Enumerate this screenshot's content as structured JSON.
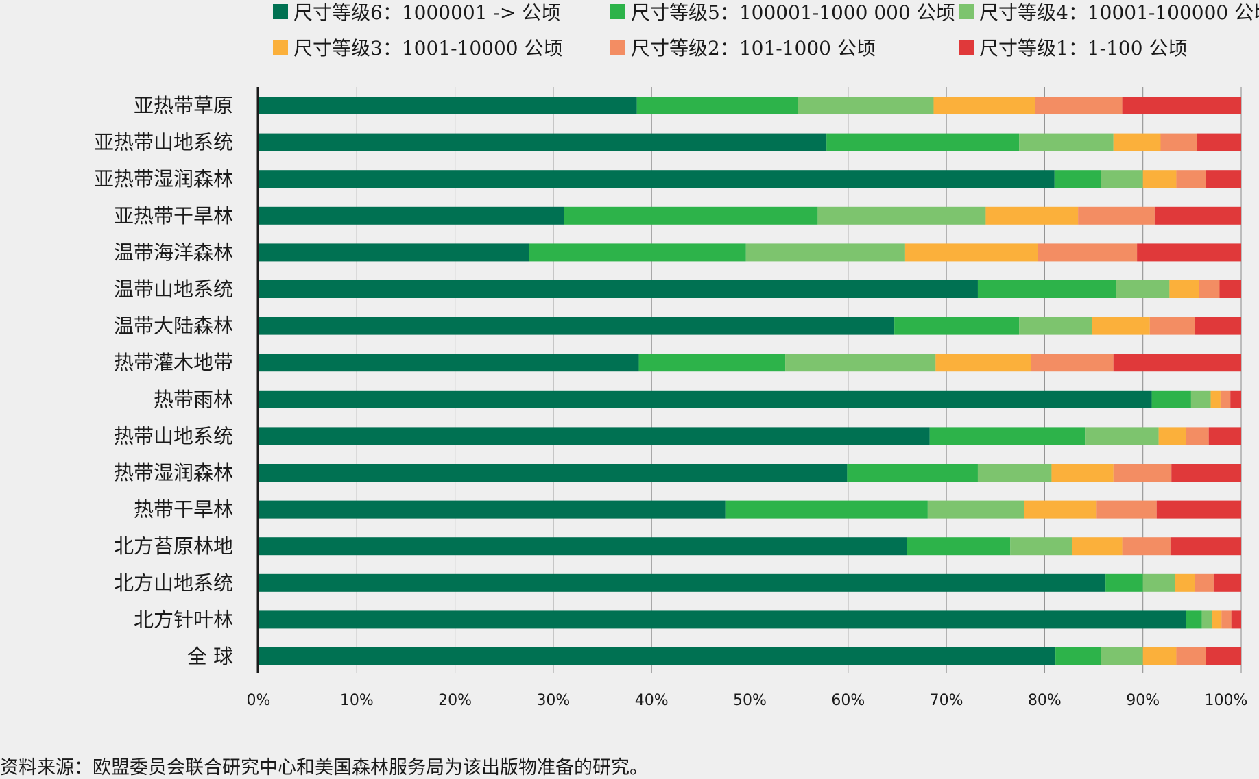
{
  "chart_data": {
    "type": "bar",
    "orientation": "horizontal",
    "stacked": true,
    "normalized": true,
    "categories": [
      "亚热带草原",
      "亚热带山地系统",
      "亚热带湿润森林",
      "亚热带干旱林",
      "温带海洋森林",
      "温带山地系统",
      "温带大陆森林",
      "热带灌木地带",
      "热带雨林",
      "热带山地系统",
      "热带湿润森林",
      "热带干旱林",
      "北方苔原林地",
      "北方山地系统",
      "北方针叶林",
      "全 球"
    ],
    "series": [
      {
        "name": "尺寸等级6：1000001 -> 公顷",
        "color": "#007152",
        "values": [
          38.5,
          57.8,
          81.0,
          31.1,
          27.5,
          73.2,
          64.7,
          38.7,
          90.9,
          68.3,
          59.9,
          47.5,
          66.0,
          86.2,
          94.4,
          81.1
        ]
      },
      {
        "name": "尺寸等级5：100001-1000 000 公顷",
        "color": "#2db34a",
        "values": [
          16.4,
          19.6,
          4.7,
          25.8,
          22.1,
          14.1,
          12.7,
          14.9,
          4.0,
          15.8,
          13.3,
          20.6,
          10.5,
          3.8,
          1.6,
          4.6
        ]
      },
      {
        "name": "尺寸等级4：10001-100000 公顷",
        "color": "#7dc46e",
        "values": [
          13.8,
          9.6,
          4.3,
          17.1,
          16.2,
          5.4,
          7.4,
          15.3,
          2.0,
          7.5,
          7.5,
          9.8,
          6.3,
          3.3,
          1.0,
          4.3
        ]
      },
      {
        "name": "尺寸等级3：1001-10000 公顷",
        "color": "#fbb03b",
        "values": [
          10.3,
          4.8,
          3.4,
          9.4,
          13.5,
          3.0,
          5.9,
          9.7,
          1.0,
          2.8,
          6.3,
          7.4,
          5.1,
          2.0,
          1.0,
          3.4
        ]
      },
      {
        "name": "尺寸等级2：101-1000 公顷",
        "color": "#f38d63",
        "values": [
          8.9,
          3.7,
          3.0,
          7.8,
          10.1,
          2.1,
          4.6,
          8.4,
          1.0,
          2.3,
          5.9,
          6.1,
          4.9,
          1.9,
          1.0,
          3.0
        ]
      },
      {
        "name": "尺寸等级1：1-100 公顷",
        "color": "#e0393a",
        "values": [
          12.1,
          4.5,
          3.6,
          8.8,
          10.6,
          2.2,
          4.7,
          13.0,
          1.1,
          3.3,
          7.1,
          8.6,
          7.2,
          2.8,
          1.0,
          3.6
        ]
      }
    ],
    "x_ticks": [
      "0%",
      "10%",
      "20%",
      "30%",
      "40%",
      "50%",
      "60%",
      "70%",
      "80%",
      "90%",
      "100%"
    ],
    "xlim": [
      0,
      100
    ],
    "grid": "vertical",
    "legend_position": "top"
  },
  "source_note": "资料来源：欧盟委员会联合研究中心和美国森林服务局为该出版物准备的研究。"
}
